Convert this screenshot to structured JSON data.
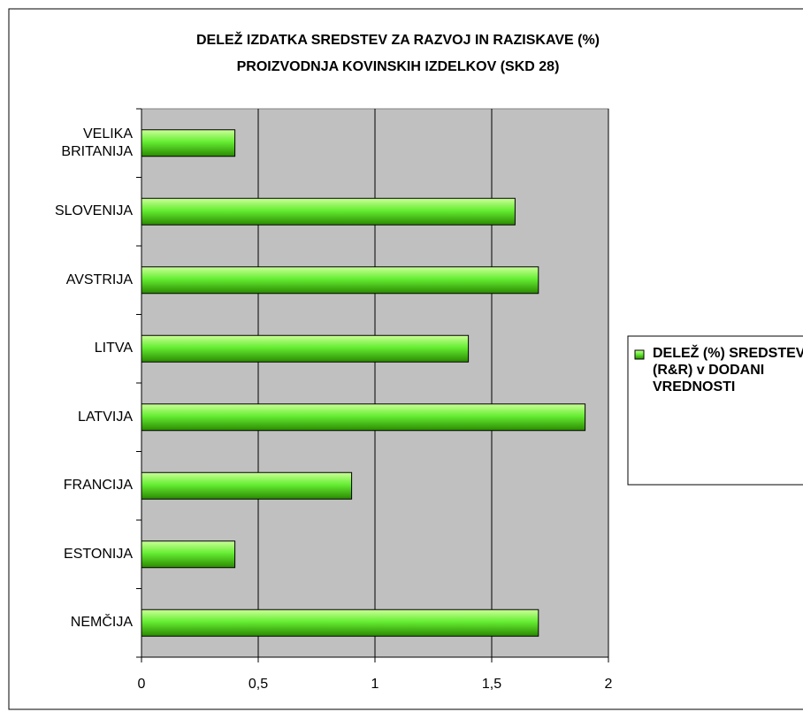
{
  "chart_data": {
    "type": "bar",
    "orientation": "horizontal",
    "title": [
      "DELEŽ IZDATKA SREDSTEV ZA RAZVOJ IN RAZISKAVE (%)",
      "PROIZVODNJA KOVINSKIH IZDELKOV (SKD 28)"
    ],
    "categories": [
      "VELIKA BRITANIJA",
      "SLOVENIJA",
      "AVSTRIJA",
      "LITVA",
      "LATVIJA",
      "FRANCIJA",
      "ESTONIJA",
      "NEMČIJA"
    ],
    "series": [
      {
        "name": "DELEŽ (%) SREDSTEV (R&R) v DODANI VREDNOSTI",
        "color": "#66ee33",
        "values": [
          0.4,
          1.6,
          1.7,
          1.4,
          1.9,
          0.9,
          0.4,
          1.7
        ]
      }
    ],
    "xlim": [
      0,
      2
    ],
    "xticks": [
      0,
      {
        "value": 0.5,
        "label": "0,5"
      },
      1,
      {
        "value": 1.5,
        "label": "1,5"
      },
      2
    ],
    "grid": true,
    "legend": "right"
  }
}
